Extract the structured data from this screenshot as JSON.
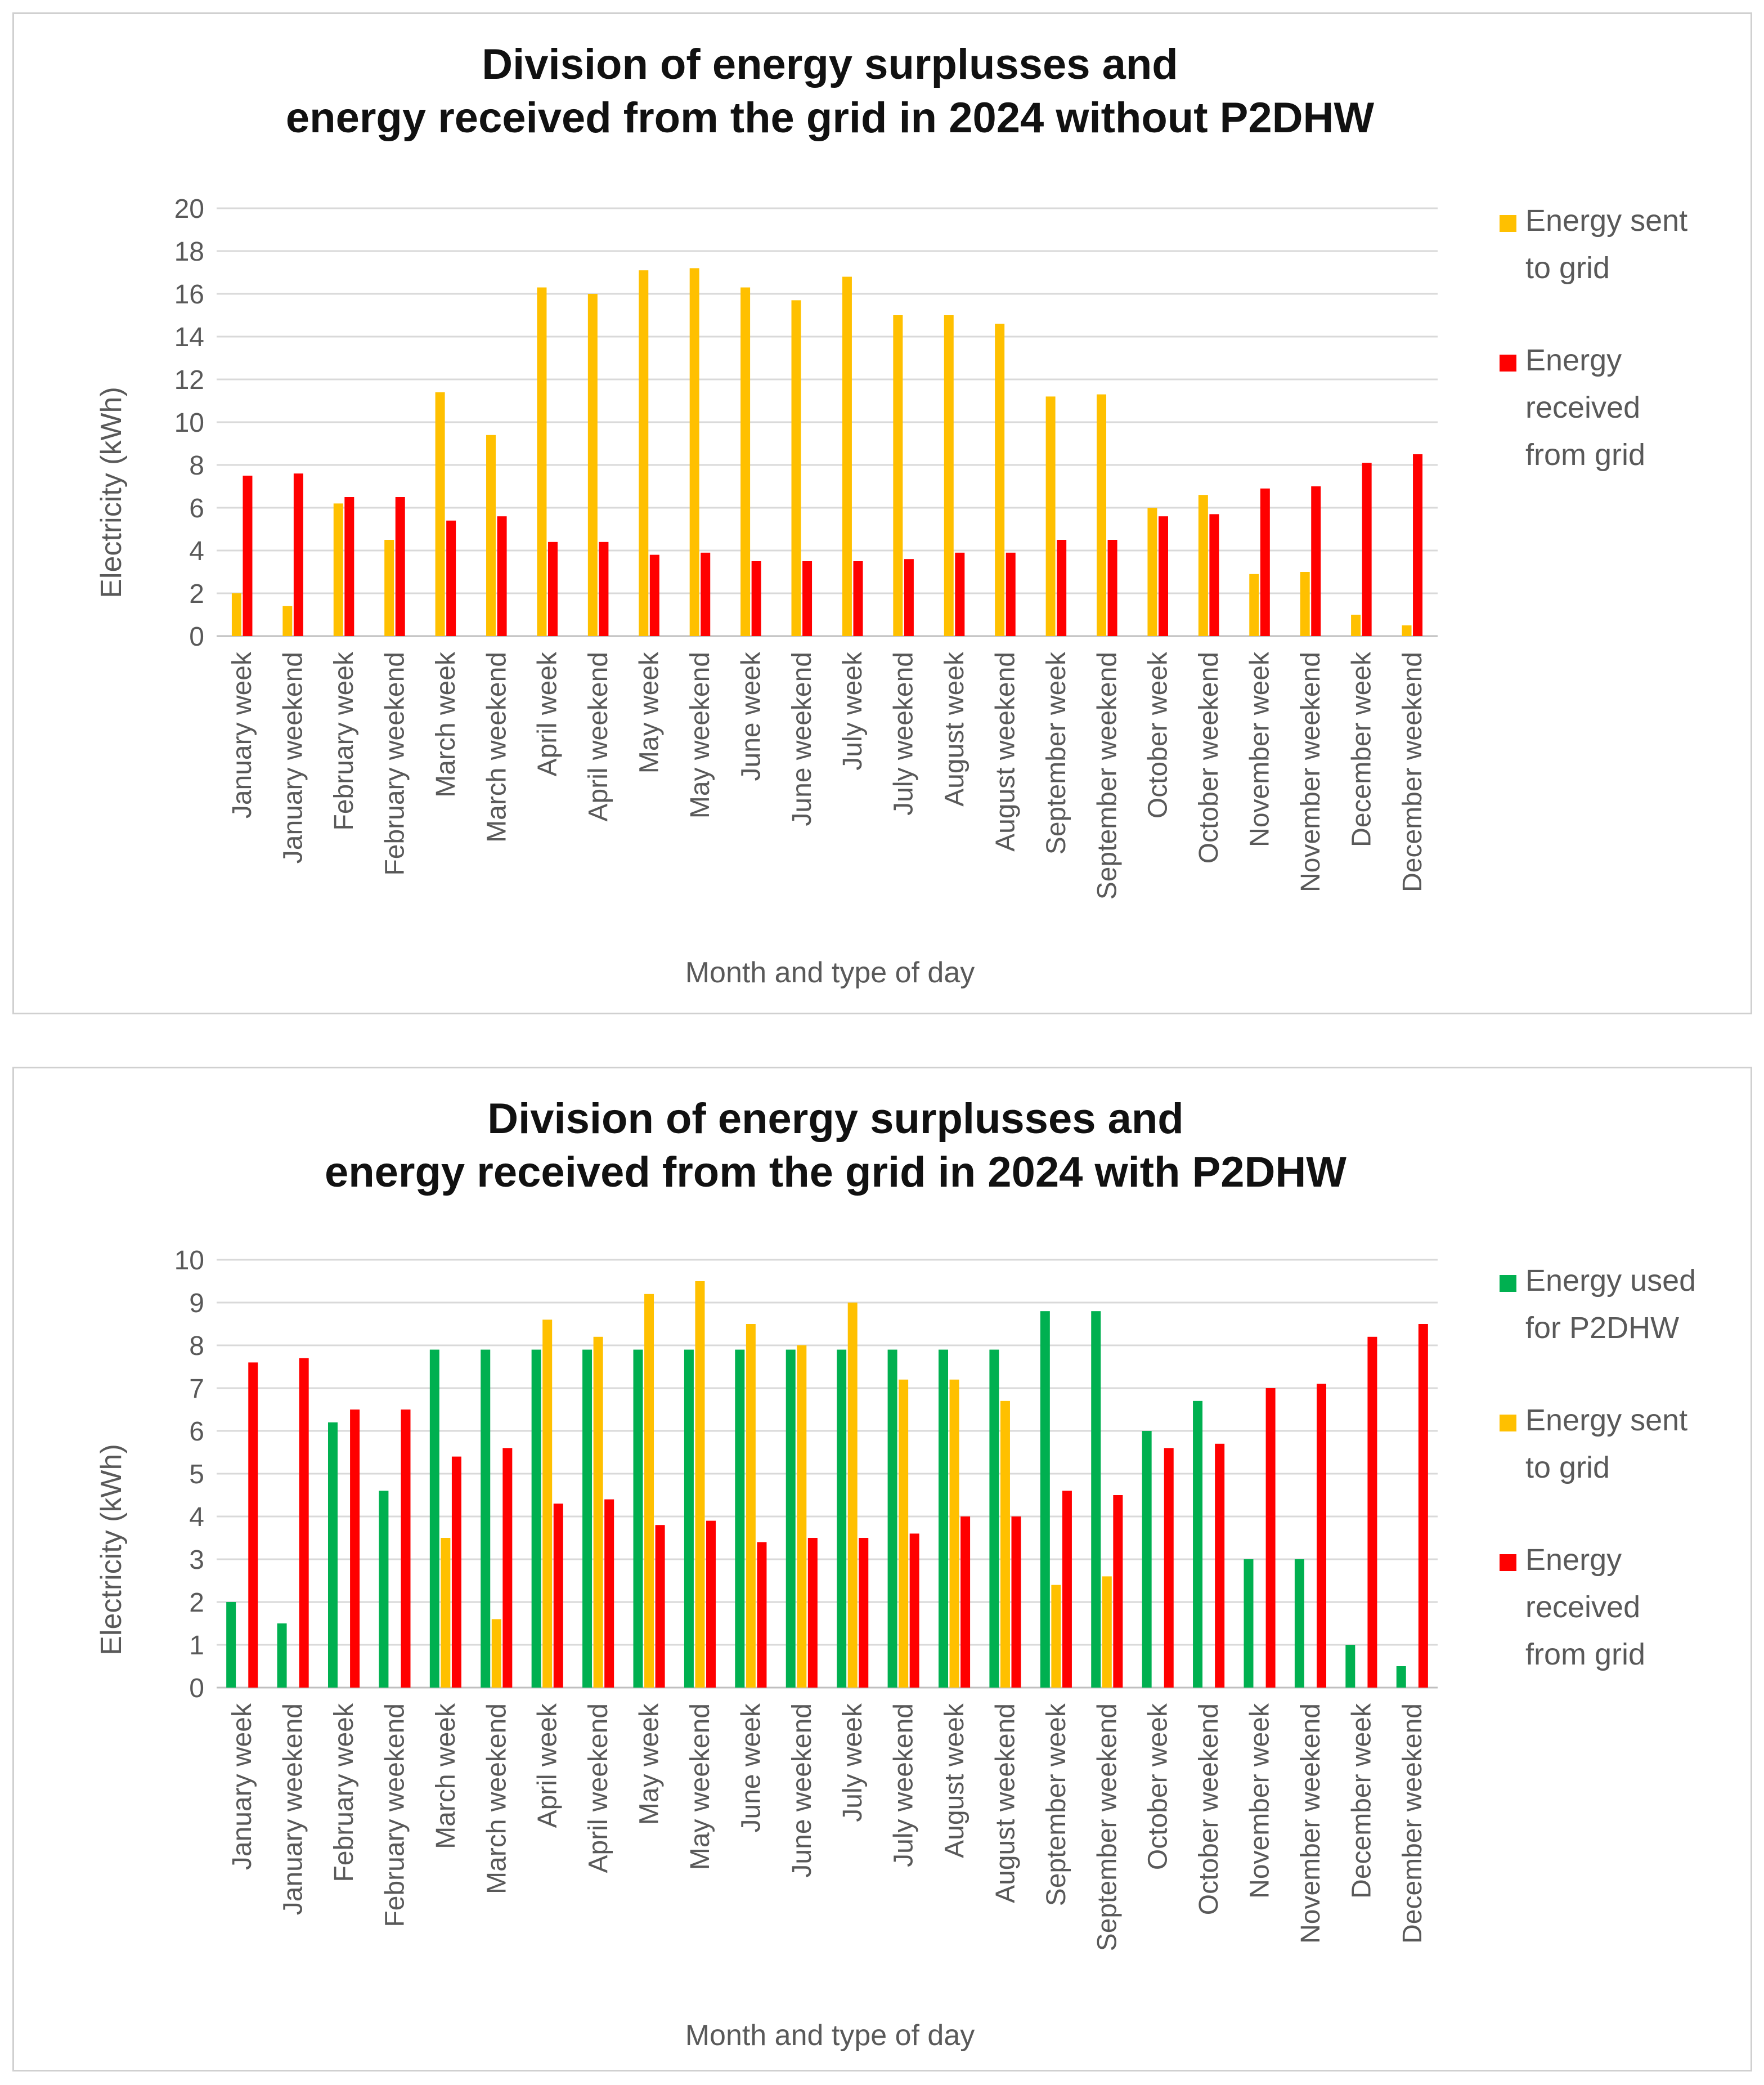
{
  "chart_data": [
    {
      "type": "bar",
      "title": [
        "Division of energy surplusses and",
        "energy received from the grid in 2024 without P2DHW"
      ],
      "xlabel": "Month and type of day",
      "ylabel": "Electricity (kWh)",
      "ylim": [
        0,
        20
      ],
      "ystep": 2,
      "grid": true,
      "legend_position": "right",
      "categories": [
        "January week",
        "January weekend",
        "February week",
        "February weekend",
        "March week",
        "March weekend",
        "April week",
        "April weekend",
        "May week",
        "May weekend",
        "June week",
        "June weekend",
        "July week",
        "July weekend",
        "August week",
        "August weekend",
        "September week",
        "September weekend",
        "October week",
        "October weekend",
        "November week",
        "November weekend",
        "December week",
        "December weekend"
      ],
      "series": [
        {
          "name": "Energy sent to grid",
          "legend_lines": [
            "Energy sent",
            "to grid"
          ],
          "color": "#FFC000",
          "values": [
            2.0,
            1.4,
            6.2,
            4.5,
            11.4,
            9.4,
            16.3,
            16.0,
            17.1,
            17.2,
            16.3,
            15.7,
            16.8,
            15.0,
            15.0,
            14.6,
            11.2,
            11.3,
            6.0,
            6.6,
            2.9,
            3.0,
            1.0,
            0.5
          ]
        },
        {
          "name": "Energy received from grid",
          "legend_lines": [
            "Energy",
            "received",
            "from grid"
          ],
          "color": "#FF0000",
          "values": [
            7.5,
            7.6,
            6.5,
            6.5,
            5.4,
            5.6,
            4.4,
            4.4,
            3.8,
            3.9,
            3.5,
            3.5,
            3.5,
            3.6,
            3.9,
            3.9,
            4.5,
            4.5,
            5.6,
            5.7,
            6.9,
            7.0,
            8.1,
            8.5
          ]
        }
      ]
    },
    {
      "type": "bar",
      "title": [
        "Division of energy surplusses and",
        "energy received from the grid in 2024 with P2DHW"
      ],
      "xlabel": "Month and type of day",
      "ylabel": "Electricity (kWh)",
      "ylim": [
        0,
        10
      ],
      "ystep": 1,
      "grid": true,
      "legend_position": "right",
      "categories": [
        "January week",
        "January weekend",
        "February week",
        "February weekend",
        "March week",
        "March weekend",
        "April week",
        "April weekend",
        "May week",
        "May weekend",
        "June week",
        "June weekend",
        "July week",
        "July weekend",
        "August week",
        "August weekend",
        "September week",
        "September weekend",
        "October week",
        "October weekend",
        "November week",
        "November weekend",
        "December week",
        "December weekend"
      ],
      "series": [
        {
          "name": "Energy used for P2DHW",
          "legend_lines": [
            "Energy used",
            "for P2DHW"
          ],
          "color": "#00B050",
          "values": [
            2.0,
            1.5,
            6.2,
            4.6,
            7.9,
            7.9,
            7.9,
            7.9,
            7.9,
            7.9,
            7.9,
            7.9,
            7.9,
            7.9,
            7.9,
            7.9,
            8.8,
            8.8,
            6.0,
            6.7,
            3.0,
            3.0,
            1.0,
            0.5
          ]
        },
        {
          "name": "Energy sent to grid",
          "legend_lines": [
            "Energy sent",
            "to grid"
          ],
          "color": "#FFC000",
          "values": [
            0,
            0,
            0,
            0,
            3.5,
            1.6,
            8.6,
            8.2,
            9.2,
            9.5,
            8.5,
            8.0,
            9.0,
            7.2,
            7.2,
            6.7,
            2.4,
            2.6,
            0,
            0,
            0,
            0,
            0,
            0
          ]
        },
        {
          "name": "Energy received from grid",
          "legend_lines": [
            "Energy",
            "received",
            "from grid"
          ],
          "color": "#FF0000",
          "values": [
            7.6,
            7.7,
            6.5,
            6.5,
            5.4,
            5.6,
            4.3,
            4.4,
            3.8,
            3.9,
            3.4,
            3.5,
            3.5,
            3.6,
            4.0,
            4.0,
            4.6,
            4.5,
            5.6,
            5.7,
            7.0,
            7.1,
            8.2,
            8.5
          ]
        }
      ]
    }
  ]
}
